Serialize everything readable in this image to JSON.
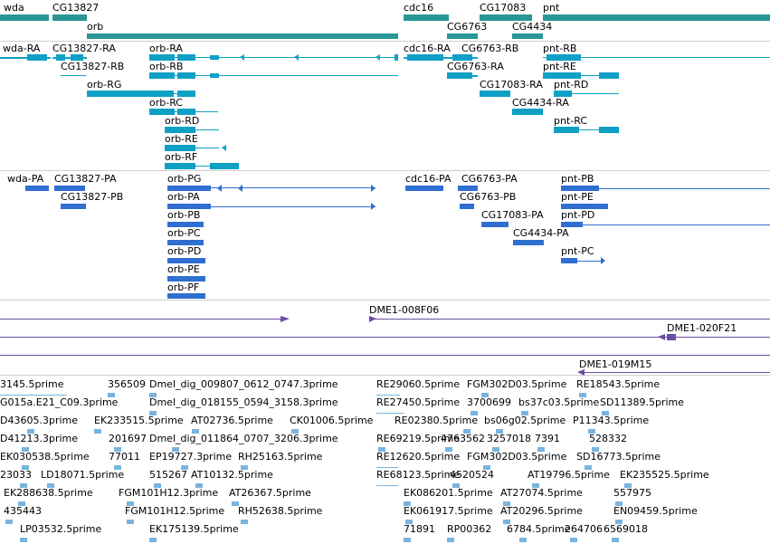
{
  "tracks": {
    "genes": [
      "wda",
      "CG13827",
      "orb",
      "cdc16",
      "CG6763",
      "CG17083",
      "CG4434",
      "pnt"
    ],
    "transcripts": [
      "wda-RA",
      "CG13827-RA",
      "orb-RA",
      "cdc16-RA",
      "CG6763-RB",
      "pnt-RB",
      "CG13827-RB",
      "orb-RB",
      "CG6763-RA",
      "pnt-RE",
      "orb-RG",
      "CG17083-RA",
      "pnt-RD",
      "orb-RC",
      "CG4434-RA",
      "orb-RD",
      "pnt-RC",
      "orb-RE",
      "orb-RF"
    ],
    "proteins": [
      "wda-PA",
      "CG13827-PA",
      "orb-PG",
      "cdc16-PA",
      "CG6763-PA",
      "pnt-PB",
      "CG13827-PB",
      "orb-PA",
      "CG6763-PB",
      "pnt-PE",
      "orb-PB",
      "CG17083-PA",
      "pnt-PD",
      "orb-PC",
      "CG4434-PA",
      "orb-PD",
      "pnt-PC",
      "orb-PE",
      "orb-PF"
    ],
    "clones": [
      "DME1-008F06",
      "DME1-020F21",
      "DME1-019M15"
    ],
    "ests": [
      "3145.5prime",
      "356509",
      "Dmel_dig_009807_0612_0747.3prime",
      "RE29060.5prime",
      "FGM302D03.5prime",
      "RE18543.5prime",
      "G015a.E21_C09.3prime",
      "Dmel_dig_018155_0594_3158.3prime",
      "RE27450.5prime",
      "3700699",
      "bs37c03.5prime",
      "SD11389.5prime",
      "D43605.3prime",
      "EK233515.5prime",
      "AT02736.5prime",
      "CK01006.5prime",
      "RE02380.5prime",
      "bs06g02.5prime",
      "P11343.5prime",
      "D41213.3prime",
      "201697",
      "Dmel_dig_011864_0707_3206.3prime",
      "RE69219.5prime",
      "4763562",
      "3257018",
      "7391",
      "528332",
      "EK030538.5prime",
      "77011",
      "EP19727.3prime",
      "RH25163.5prime",
      "RE12620.5prime",
      "FGM302D03.5prime",
      "SD16773.5prime",
      "23033",
      "LD18071.5prime",
      "515267",
      "AT10132.5prime",
      "RE68123.5prime",
      "4520524",
      "AT19796.5prime",
      "EK235525.5prime",
      "EK288638.5prime",
      "FGM101H12.3prime",
      "AT26367.5prime",
      "EK086201.5prime",
      "AT27074.5prime",
      "557975",
      "435443",
      "FGM101H12.5prime",
      "RH52638.5prime",
      "EK061917.5prime",
      "AT20296.5prime",
      "EN09459.5prime",
      "LP03532.5prime",
      "EK175139.5prime",
      "71891",
      "RP00362",
      "6784.5prime",
      "264706",
      "6569018"
    ]
  }
}
